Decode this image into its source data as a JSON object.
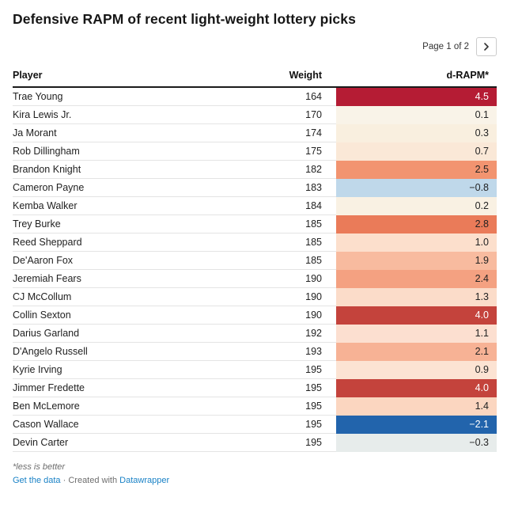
{
  "title": "Defensive RAPM of recent light-weight lottery picks",
  "pagination": {
    "label": "Page 1 of 2",
    "next_icon": "chevron-right"
  },
  "chart_data": {
    "type": "table",
    "title": "Defensive RAPM of recent light-weight lottery picks",
    "columns": [
      "Player",
      "Weight",
      "d-RAPM*"
    ],
    "heatmap_column": "d-RAPM*",
    "legend_note": "*less is better (lower d-RAPM shaded blue, higher shaded red)",
    "color_scale": {
      "strong_negative": "#2264ac",
      "neutral": "#f9f3e8",
      "strong_positive": "#b51c34"
    },
    "rows": [
      {
        "player": "Trae Young",
        "weight": "164",
        "d_rapm": "4.5",
        "cell_color": "#b51c34",
        "text_color": "#ffffff"
      },
      {
        "player": "Kira Lewis Jr.",
        "weight": "170",
        "d_rapm": "0.1",
        "cell_color": "#f9f3e8",
        "text_color": "#222222"
      },
      {
        "player": "Ja Morant",
        "weight": "174",
        "d_rapm": "0.3",
        "cell_color": "#f9efdf",
        "text_color": "#222222"
      },
      {
        "player": "Rob Dillingham",
        "weight": "175",
        "d_rapm": "0.7",
        "cell_color": "#fae8d7",
        "text_color": "#222222"
      },
      {
        "player": "Brandon Knight",
        "weight": "182",
        "d_rapm": "2.5",
        "cell_color": "#f29470",
        "text_color": "#222222"
      },
      {
        "player": "Cameron Payne",
        "weight": "183",
        "d_rapm": "−0.8",
        "cell_color": "#bfd8ea",
        "text_color": "#222222"
      },
      {
        "player": "Kemba Walker",
        "weight": "184",
        "d_rapm": "0.2",
        "cell_color": "#f9f1e3",
        "text_color": "#222222"
      },
      {
        "player": "Trey Burke",
        "weight": "185",
        "d_rapm": "2.8",
        "cell_color": "#ea7b59",
        "text_color": "#222222"
      },
      {
        "player": "Reed Sheppard",
        "weight": "185",
        "d_rapm": "1.0",
        "cell_color": "#fcdfcc",
        "text_color": "#222222"
      },
      {
        "player": "De'Aaron Fox",
        "weight": "185",
        "d_rapm": "1.9",
        "cell_color": "#f8bb9f",
        "text_color": "#222222"
      },
      {
        "player": "Jeremiah Fears",
        "weight": "190",
        "d_rapm": "2.4",
        "cell_color": "#f4a181",
        "text_color": "#222222"
      },
      {
        "player": "CJ McCollum",
        "weight": "190",
        "d_rapm": "1.3",
        "cell_color": "#fbdcc9",
        "text_color": "#222222"
      },
      {
        "player": "Collin Sexton",
        "weight": "190",
        "d_rapm": "4.0",
        "cell_color": "#c4433c",
        "text_color": "#ffffff"
      },
      {
        "player": "Darius Garland",
        "weight": "192",
        "d_rapm": "1.1",
        "cell_color": "#fcdfd0",
        "text_color": "#222222"
      },
      {
        "player": "D'Angelo Russell",
        "weight": "193",
        "d_rapm": "2.1",
        "cell_color": "#f7b295",
        "text_color": "#222222"
      },
      {
        "player": "Kyrie Irving",
        "weight": "195",
        "d_rapm": "0.9",
        "cell_color": "#fce3d3",
        "text_color": "#222222"
      },
      {
        "player": "Jimmer Fredette",
        "weight": "195",
        "d_rapm": "4.0",
        "cell_color": "#c4433c",
        "text_color": "#ffffff"
      },
      {
        "player": "Ben McLemore",
        "weight": "195",
        "d_rapm": "1.4",
        "cell_color": "#fbd6c0",
        "text_color": "#222222"
      },
      {
        "player": "Cason Wallace",
        "weight": "195",
        "d_rapm": "−2.1",
        "cell_color": "#2264ac",
        "text_color": "#ffffff"
      },
      {
        "player": "Devin Carter",
        "weight": "195",
        "d_rapm": "−0.3",
        "cell_color": "#e7eceb",
        "text_color": "#222222"
      }
    ]
  },
  "footer": {
    "note": "*less is better",
    "get_data_label": "Get the data",
    "separator": "·",
    "created_with_label": "Created with",
    "datawrapper_label": "Datawrapper"
  }
}
